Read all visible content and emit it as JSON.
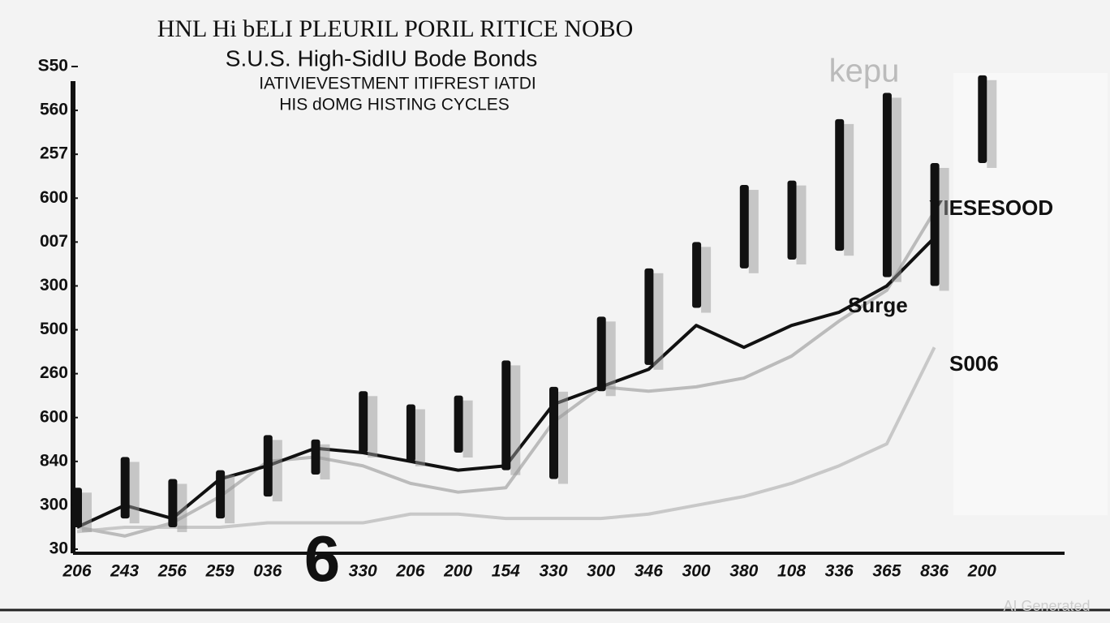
{
  "chart_data": {
    "type": "candlestick",
    "title": "HNL Hi bELI PLEURIL PORIL RITICE NOBO",
    "subtitle": "S.U.S. High-SidIU Bode Bonds",
    "subtitle2": "IATIVIEVESTMENT ITIFREST IATDI",
    "subtitle3": "HIS dOMG HISTING CYCLES",
    "categories": [
      "206",
      "243",
      "256",
      "259",
      "036",
      null,
      "330",
      "206",
      "200",
      "154",
      "330",
      "300",
      "346",
      "300",
      "380",
      "108",
      "336",
      "365",
      "836",
      "200"
    ],
    "ylim": [
      0,
      11
    ],
    "yticks": [
      {
        "value": 0,
        "label": "30"
      },
      {
        "value": 1,
        "label": "300"
      },
      {
        "value": 2,
        "label": "840"
      },
      {
        "value": 3,
        "label": "600"
      },
      {
        "value": 4,
        "label": "260"
      },
      {
        "value": 5,
        "label": "500"
      },
      {
        "value": 6,
        "label": "300"
      },
      {
        "value": 7,
        "label": "007"
      },
      {
        "value": 8,
        "label": "600"
      },
      {
        "value": 9,
        "label": "257"
      },
      {
        "value": 10,
        "label": "560"
      },
      {
        "value": 11,
        "label": "S50"
      }
    ],
    "candles": {
      "color": "#111111",
      "high": [
        1.4,
        2.1,
        1.6,
        1.8,
        2.6,
        2.5,
        3.6,
        3.3,
        3.5,
        4.3,
        3.7,
        5.3,
        6.4,
        7.0,
        8.3,
        8.4,
        9.8,
        10.4,
        8.8,
        10.8
      ],
      "low": [
        0.5,
        0.7,
        0.5,
        0.7,
        1.2,
        1.7,
        2.2,
        2.0,
        2.2,
        1.8,
        1.6,
        3.6,
        4.2,
        5.5,
        6.4,
        6.6,
        6.8,
        6.2,
        6.0,
        8.8
      ]
    },
    "series": [
      {
        "name": "YIESESOOD",
        "color": "#111111",
        "values": [
          0.5,
          1.0,
          0.7,
          1.6,
          1.9,
          2.3,
          2.2,
          2.0,
          1.8,
          1.9,
          3.3,
          3.7,
          4.1,
          5.1,
          4.6,
          5.1,
          5.4,
          6.0,
          7.1,
          null
        ]
      },
      {
        "name": "Surge",
        "color": "#bbbbbb",
        "values": [
          0.5,
          0.3,
          0.6,
          1.2,
          2.0,
          2.1,
          1.9,
          1.5,
          1.3,
          1.4,
          2.9,
          3.7,
          3.6,
          3.7,
          3.9,
          4.4,
          5.2,
          5.9,
          7.7,
          null
        ]
      },
      {
        "name": "S006",
        "color": "#c8c8c8",
        "values": [
          0.4,
          0.5,
          0.5,
          0.5,
          0.6,
          0.6,
          0.6,
          0.8,
          0.8,
          0.7,
          0.7,
          0.7,
          0.8,
          1.0,
          1.2,
          1.5,
          1.9,
          2.4,
          4.6,
          null
        ]
      }
    ],
    "annotations": [
      "kepu",
      "6",
      "AI Generated"
    ]
  }
}
